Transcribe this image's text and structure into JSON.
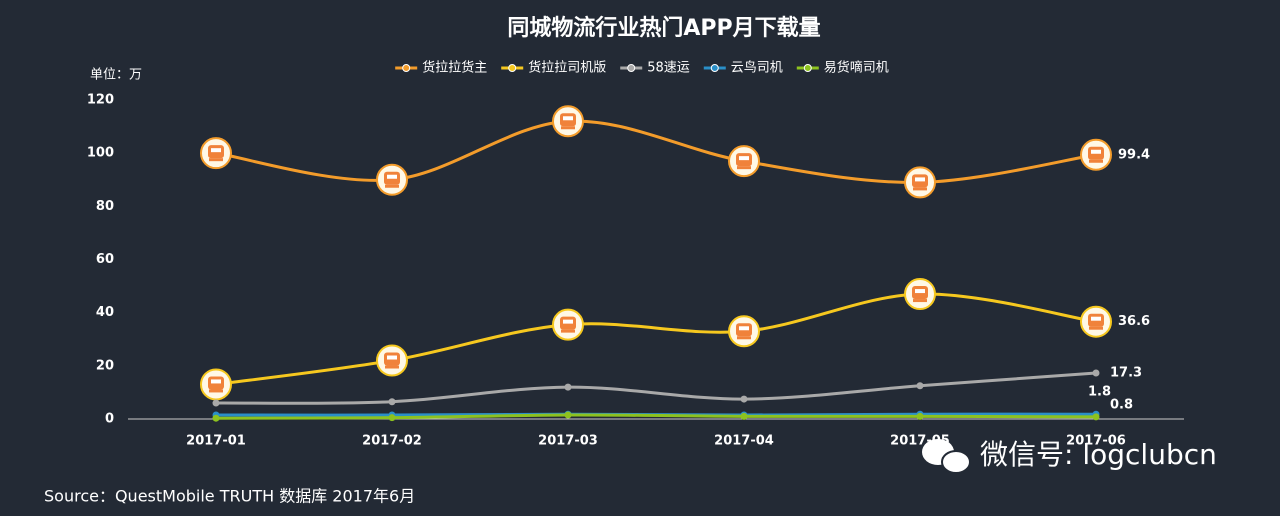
{
  "chart_data": {
    "type": "line",
    "title": "同城物流行业热门APP月下载量",
    "y_label": "单位：万",
    "categories": [
      "2017-01",
      "2017-02",
      "2017-03",
      "2017-04",
      "2017-05",
      "2017-06"
    ],
    "series": [
      {
        "name": "货拉拉货主",
        "color": "#f39c2b",
        "marker": "truck",
        "values": [
          100,
          90,
          112,
          97,
          89,
          99.4
        ]
      },
      {
        "name": "货拉拉司机版",
        "color": "#f6c81f",
        "marker": "truck",
        "values": [
          13,
          22,
          35.5,
          33,
          47,
          36.6
        ]
      },
      {
        "name": "58速运",
        "color": "#a9a9a9",
        "marker": "dot",
        "values": [
          6,
          6.5,
          12,
          7.5,
          12.5,
          17.3
        ]
      },
      {
        "name": "云鸟司机",
        "color": "#2a8fc8",
        "marker": "dot",
        "values": [
          1.5,
          1.5,
          1.8,
          1.5,
          1.8,
          1.8
        ]
      },
      {
        "name": "易货嘀司机",
        "color": "#8dc21f",
        "marker": "dot",
        "values": [
          0.3,
          0.5,
          1.5,
          1,
          1,
          0.8
        ]
      }
    ],
    "ylim": [
      0,
      120
    ],
    "yticks": [
      0,
      20,
      40,
      60,
      80,
      100,
      120
    ],
    "grid": false,
    "source": "Source：QuestMobile TRUTH 数据库 2017年6月",
    "watermark": "微信号: logclubcn"
  }
}
